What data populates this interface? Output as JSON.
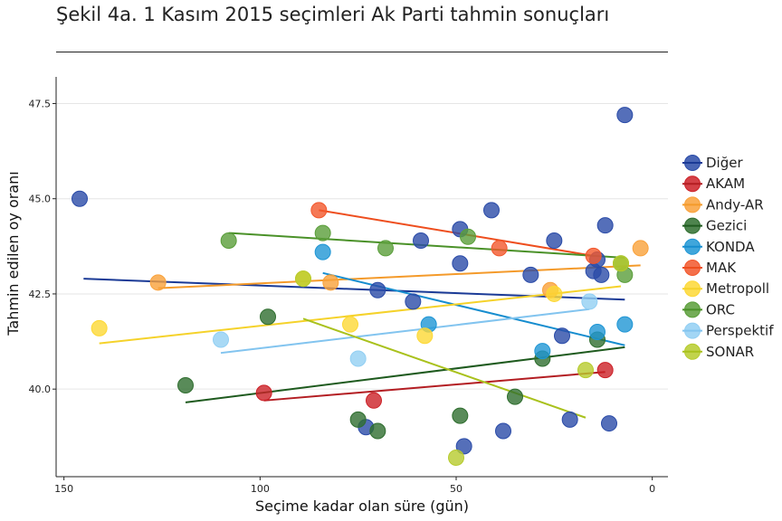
{
  "chart_data": {
    "type": "scatter",
    "title": "Şekil 4a. 1 Kasım 2015 seçimleri Ak Parti tahmin sonuçları",
    "xlabel": "Seçime kadar olan süre (gün)",
    "ylabel": "Tahmin edilen oy oranı",
    "xlim": [
      152,
      -4
    ],
    "ylim": [
      37.7,
      48.2
    ],
    "x_reversed": true,
    "x_ticks": [
      150,
      100,
      50,
      0
    ],
    "y_ticks": [
      40.0,
      42.5,
      45.0,
      47.5
    ],
    "x_tick_labels": [
      "150",
      "100",
      "50",
      "0"
    ],
    "y_tick_labels": [
      "40.0",
      "42.5",
      "45.0",
      "47.5"
    ],
    "grid": "horizontal",
    "legend_position": "right",
    "trend_lines": true,
    "series": [
      {
        "name": "Diğer",
        "color": "#2a4ba8",
        "line_color": "#1a3a96",
        "points": [
          [
            146,
            45.0
          ],
          [
            7,
            47.2
          ],
          [
            41,
            44.7
          ],
          [
            49,
            44.2
          ],
          [
            12,
            44.3
          ],
          [
            25,
            43.9
          ],
          [
            59,
            43.9
          ],
          [
            14,
            43.4
          ],
          [
            49,
            43.3
          ],
          [
            15,
            43.1
          ],
          [
            31,
            43.0
          ],
          [
            13,
            43.0
          ],
          [
            70,
            42.6
          ],
          [
            61,
            42.3
          ],
          [
            23,
            41.4
          ],
          [
            73,
            39.0
          ],
          [
            48,
            38.5
          ],
          [
            38,
            38.9
          ],
          [
            21,
            39.2
          ],
          [
            11,
            39.1
          ]
        ],
        "trend": [
          [
            145,
            42.9
          ],
          [
            7,
            42.35
          ]
        ]
      },
      {
        "name": "AKAM",
        "color": "#cc2027",
        "line_color": "#b31d22",
        "points": [
          [
            99,
            39.9
          ],
          [
            71,
            39.7
          ],
          [
            12,
            40.5
          ]
        ],
        "trend": [
          [
            99,
            39.7
          ],
          [
            12,
            40.45
          ]
        ]
      },
      {
        "name": "Andy-AR",
        "color": "#f9a13a",
        "line_color": "#f49a2a",
        "points": [
          [
            126,
            42.8
          ],
          [
            82,
            42.8
          ],
          [
            26,
            42.6
          ],
          [
            3,
            43.7
          ]
        ],
        "trend": [
          [
            126,
            42.65
          ],
          [
            3,
            43.25
          ]
        ]
      },
      {
        "name": "Gezici",
        "color": "#2f6e2f",
        "line_color": "#1e5a1e",
        "points": [
          [
            119,
            40.1
          ],
          [
            98,
            41.9
          ],
          [
            75,
            39.2
          ],
          [
            70,
            38.9
          ],
          [
            49,
            39.3
          ],
          [
            35,
            39.8
          ],
          [
            28,
            40.8
          ],
          [
            14,
            41.3
          ]
        ],
        "trend": [
          [
            119,
            39.65
          ],
          [
            7,
            41.1
          ]
        ]
      },
      {
        "name": "KONDA",
        "color": "#1f96d5",
        "line_color": "#168dcf",
        "points": [
          [
            84,
            43.6
          ],
          [
            57,
            41.7
          ],
          [
            28,
            41.0
          ],
          [
            14,
            41.5
          ],
          [
            7,
            41.7
          ]
        ],
        "trend": [
          [
            84,
            43.05
          ],
          [
            7,
            41.15
          ]
        ]
      },
      {
        "name": "MAK",
        "color": "#f2572c",
        "line_color": "#ee4e1e",
        "points": [
          [
            85,
            44.7
          ],
          [
            39,
            43.7
          ],
          [
            15,
            43.5
          ]
        ],
        "trend": [
          [
            85,
            44.7
          ],
          [
            15,
            43.5
          ]
        ]
      },
      {
        "name": "Metropoll",
        "color": "#fdd835",
        "line_color": "#f5d22a",
        "points": [
          [
            141,
            41.6
          ],
          [
            89,
            42.9
          ],
          [
            77,
            41.7
          ],
          [
            58,
            41.4
          ],
          [
            25,
            42.5
          ]
        ],
        "trend": [
          [
            141,
            41.2
          ],
          [
            8,
            42.7
          ]
        ]
      },
      {
        "name": "ORC",
        "color": "#5a9e3a",
        "line_color": "#4a9128",
        "points": [
          [
            108,
            43.9
          ],
          [
            84,
            44.1
          ],
          [
            68,
            43.7
          ],
          [
            47,
            44.0
          ],
          [
            8,
            43.3
          ],
          [
            7,
            43.0
          ]
        ],
        "trend": [
          [
            108,
            44.1
          ],
          [
            7,
            43.45
          ]
        ]
      },
      {
        "name": "Perspektif",
        "color": "#92cff3",
        "line_color": "#82c4ef",
        "points": [
          [
            110,
            41.3
          ],
          [
            75,
            40.8
          ],
          [
            16,
            42.3
          ]
        ],
        "trend": [
          [
            110,
            40.95
          ],
          [
            16,
            42.1
          ]
        ]
      },
      {
        "name": "SONAR",
        "color": "#b6cb2d",
        "line_color": "#a9c11c",
        "points": [
          [
            89,
            42.9
          ],
          [
            50,
            38.2
          ],
          [
            17,
            40.5
          ],
          [
            8,
            43.3
          ]
        ],
        "trend": [
          [
            89,
            41.85
          ],
          [
            17,
            39.25
          ]
        ]
      }
    ]
  }
}
